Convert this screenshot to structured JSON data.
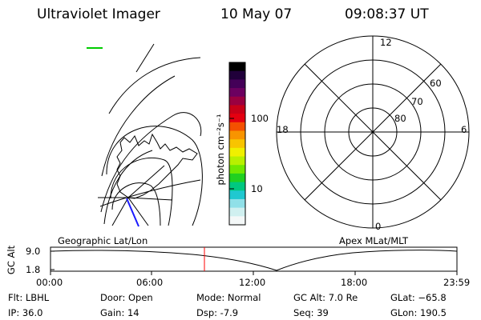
{
  "header": {
    "instrument": "Ultraviolet Imager",
    "date": "10 May 07",
    "time": "09:08:37 UT"
  },
  "colorbar": {
    "unit_label": "photon cm⁻²s⁻¹",
    "ticks": [
      "100",
      "10"
    ],
    "colors": [
      "#000000",
      "#20003a",
      "#440058",
      "#6c0060",
      "#9a0040",
      "#c80018",
      "#e40010",
      "#f45000",
      "#f89400",
      "#f8c400",
      "#f0f000",
      "#b8f000",
      "#70e800",
      "#20d020",
      "#00c880",
      "#20c8d0",
      "#90e0e8",
      "#d0f0f0",
      "#f4f8f8"
    ]
  },
  "polar_plot": {
    "mlt_labels": [
      "12",
      "18",
      "6",
      "0"
    ],
    "mlat_labels": [
      "60",
      "70",
      "80"
    ]
  },
  "map_panel": {
    "label": "Geographic Lat/Lon",
    "track_color": "#00cc00",
    "footprint_color": "#1a1aff"
  },
  "polar_panel_label": "Apex MLat/MLT",
  "altitude_plot": {
    "ylabel": "GC Alt",
    "ytick_high": "9.0",
    "ytick_low": "1.8",
    "xticks": [
      "00:00",
      "06:00",
      "12:00",
      "18:00",
      "23:59"
    ],
    "marker_color": "#ff0000"
  },
  "info": {
    "flt": "Flt: LBHL",
    "ip": "IP: 36.0",
    "door": "Door: Open",
    "gain": "Gain: 14",
    "mode": "Mode: Normal",
    "dsp": "Dsp:    -7.9",
    "gc_alt": "GC Alt: 7.0 Re",
    "seq": "Seq: 39",
    "glat": "GLat: −65.8",
    "glon": "GLon: 190.5"
  }
}
